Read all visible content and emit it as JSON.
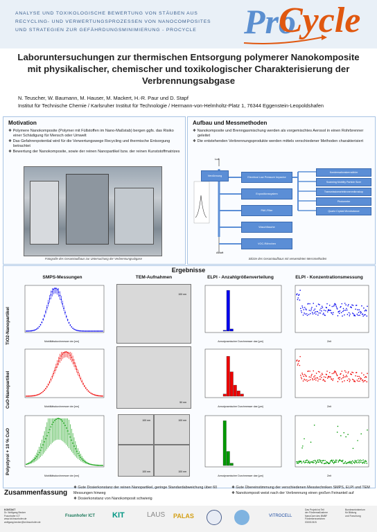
{
  "header": {
    "project_lines": [
      "ANALYSE UND TOXIKOLOGISCHE BEWERTUNG VON STÄUBEN AUS",
      "RECYCLING- UND VERWERTUNGSPROZESSEN VON NANOCOMPOSITES",
      "UND STRATEGIEN ZUR GEFÄHRDUNGSMINIMIERUNG - PROCYCLE"
    ],
    "logo_part1": "Pro",
    "logo_part2": "Cycle"
  },
  "title_lines": [
    "Laboruntersuchungen zur thermischen Entsorgung polymerer Nanokomposite",
    "mit physikalischer, chemischer und toxikologischer Charakterisierung der",
    "Verbrennungsabgase"
  ],
  "authors": "N. Teuscher, W. Baumann, M. Hauser, M. Mackert, H.-R. Paur und D. Stapf",
  "affiliation": "Institut für Technische Chemie / Karlsruher Institut für Technologie / Hermann-von-Helmholtz-Platz 1, 76344 Eggenstein-Leopoldshafen",
  "motivation": {
    "title": "Motivation",
    "bullets": [
      "Polymere Nanokomposite (Polymer mit Füllstoffen im Nano-Maßstab) bergen ggfs. das Risiko einer Schädigung für Mensch oder Umwelt",
      "Das Gefahrenpotential wird für die Verwertungswege Recycling und thermische Entsorgung betrachtet",
      "Bewertung der Nanokomposite, sowie der reinen Nanopartikel bzw. der reinen Kunststoffmatrizes"
    ],
    "caption": "Fotografie des Gesamtaufbaus zur Untersuchung der Verbrennungsabgase"
  },
  "methods": {
    "title": "Aufbau und Messmethoden",
    "bullets": [
      "Nanokomposite und Brenngasmischung werden als vorgemischtes Aerosol in einen Rohrbrenner geleitet",
      "Die entstehenden Verbrennungsprodukte werden mittels verschiedener Methoden charakterisiert"
    ],
    "diagram": {
      "luft": "Luft",
      "abluft": "Abluft",
      "verdunnung": "Verdünnung",
      "impactor": "Electrical Low Pressure Impactor",
      "expo": "Expositionssystem",
      "pak": "PAK-Filter",
      "wasch": "Waschflasche",
      "voc": "VOC-Röhrchen",
      "right": [
        "Kondensationskernzähler",
        "Scanning Mobility Particle Sizer",
        "Transmissionselektronenmikroskop",
        "Photometer",
        "Quartz Crystal Microbalance"
      ]
    },
    "caption": "Skizze des Gesamtaufbaus mit verwendeten Messmethoden"
  },
  "results": {
    "title": "Ergebnisse",
    "columns": [
      "SMPS-Messungen",
      "TEM-Aufnahmen",
      "ELPI - Anzahlgrößenverteilung",
      "ELPI - Konzentrationsmessung"
    ],
    "rows": [
      "TiO2-Nanopartikel",
      "CuO-Nanopartikel",
      "Polystyrol + 10 % CuO"
    ],
    "scale_100": "100 nm",
    "scale_50": "50 nm",
    "smps_xlabel": "Mobilitätsdurchmesser dm [nm]",
    "elpi_xlabel": "Aerodynamischer Durchmesser dae [µm]",
    "conc_xlabel": "Zeit"
  },
  "summary": {
    "title": "Zusammenfassung",
    "left": [
      "Gute Dosierkonstanz der reinen Nanopartikel, geringe Standardabweichung über 60 Messungen hinweg",
      "Dosierkonstanz von Nanokomposit schwierig"
    ],
    "right": [
      "Gute Übereinstimmung der verschiedenen Messtechniken SMPS, ELPI und TEM",
      "Nanokomposit weist nach der Verbrennung einen großen Feinanteil auf"
    ]
  },
  "footer": {
    "contact": [
      "KONTAKT",
      "Dr. Wolfgang Becker",
      "Fraunhofer ICT",
      "www.ict.fraunhofer.de",
      "wolfgang.becker@ict.fraunhofer.de"
    ],
    "logos": [
      "Fraunhofer ICT",
      "KIT",
      "LAUS",
      "PALAS",
      "VITROCELL"
    ],
    "funding": [
      "Das Projekt ist Teil",
      "der Fördermaßnahme",
      "NanoCare des BMBF",
      "Förderkennzeichen",
      "03X0106 B"
    ],
    "bmbf": [
      "Bundesministerium",
      "für Bildung",
      "und Forschung"
    ]
  },
  "colors": {
    "accent_blue": "#5b8ed6",
    "brand_orange": "#e05810",
    "tio2": "#0000ee",
    "cuo": "#ee0000",
    "ps": "#009900"
  }
}
